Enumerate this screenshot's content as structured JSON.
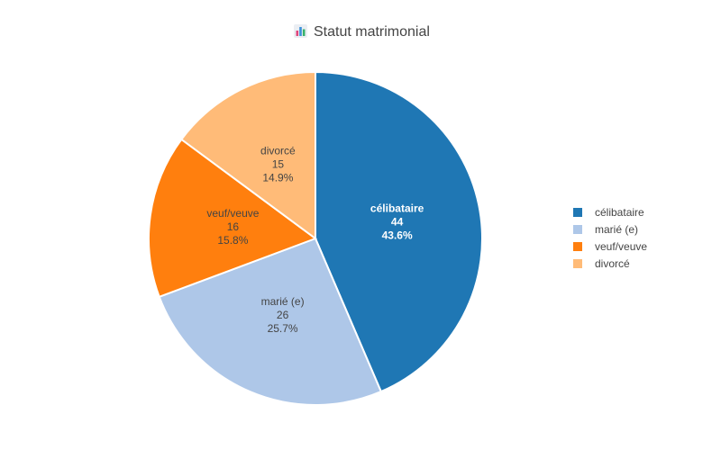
{
  "chart_data": {
    "type": "pie",
    "title": "Statut matrimonial",
    "title_icon": "bar-chart-icon",
    "categories": [
      "célibataire",
      "marié (e)",
      "veuf/veuve",
      "divorcé"
    ],
    "values": [
      44,
      26,
      16,
      15
    ],
    "percent_labels": [
      "43.6%",
      "25.7%",
      "15.8%",
      "14.9%"
    ],
    "colors": [
      "#1f77b4",
      "#aec7e8",
      "#ff7f0e",
      "#ffbb78"
    ],
    "label_colors": [
      "#ffffff",
      "#444444",
      "#444444",
      "#444444"
    ],
    "direction": "clockwise",
    "start": "12 o'clock",
    "legend_position": "right"
  }
}
